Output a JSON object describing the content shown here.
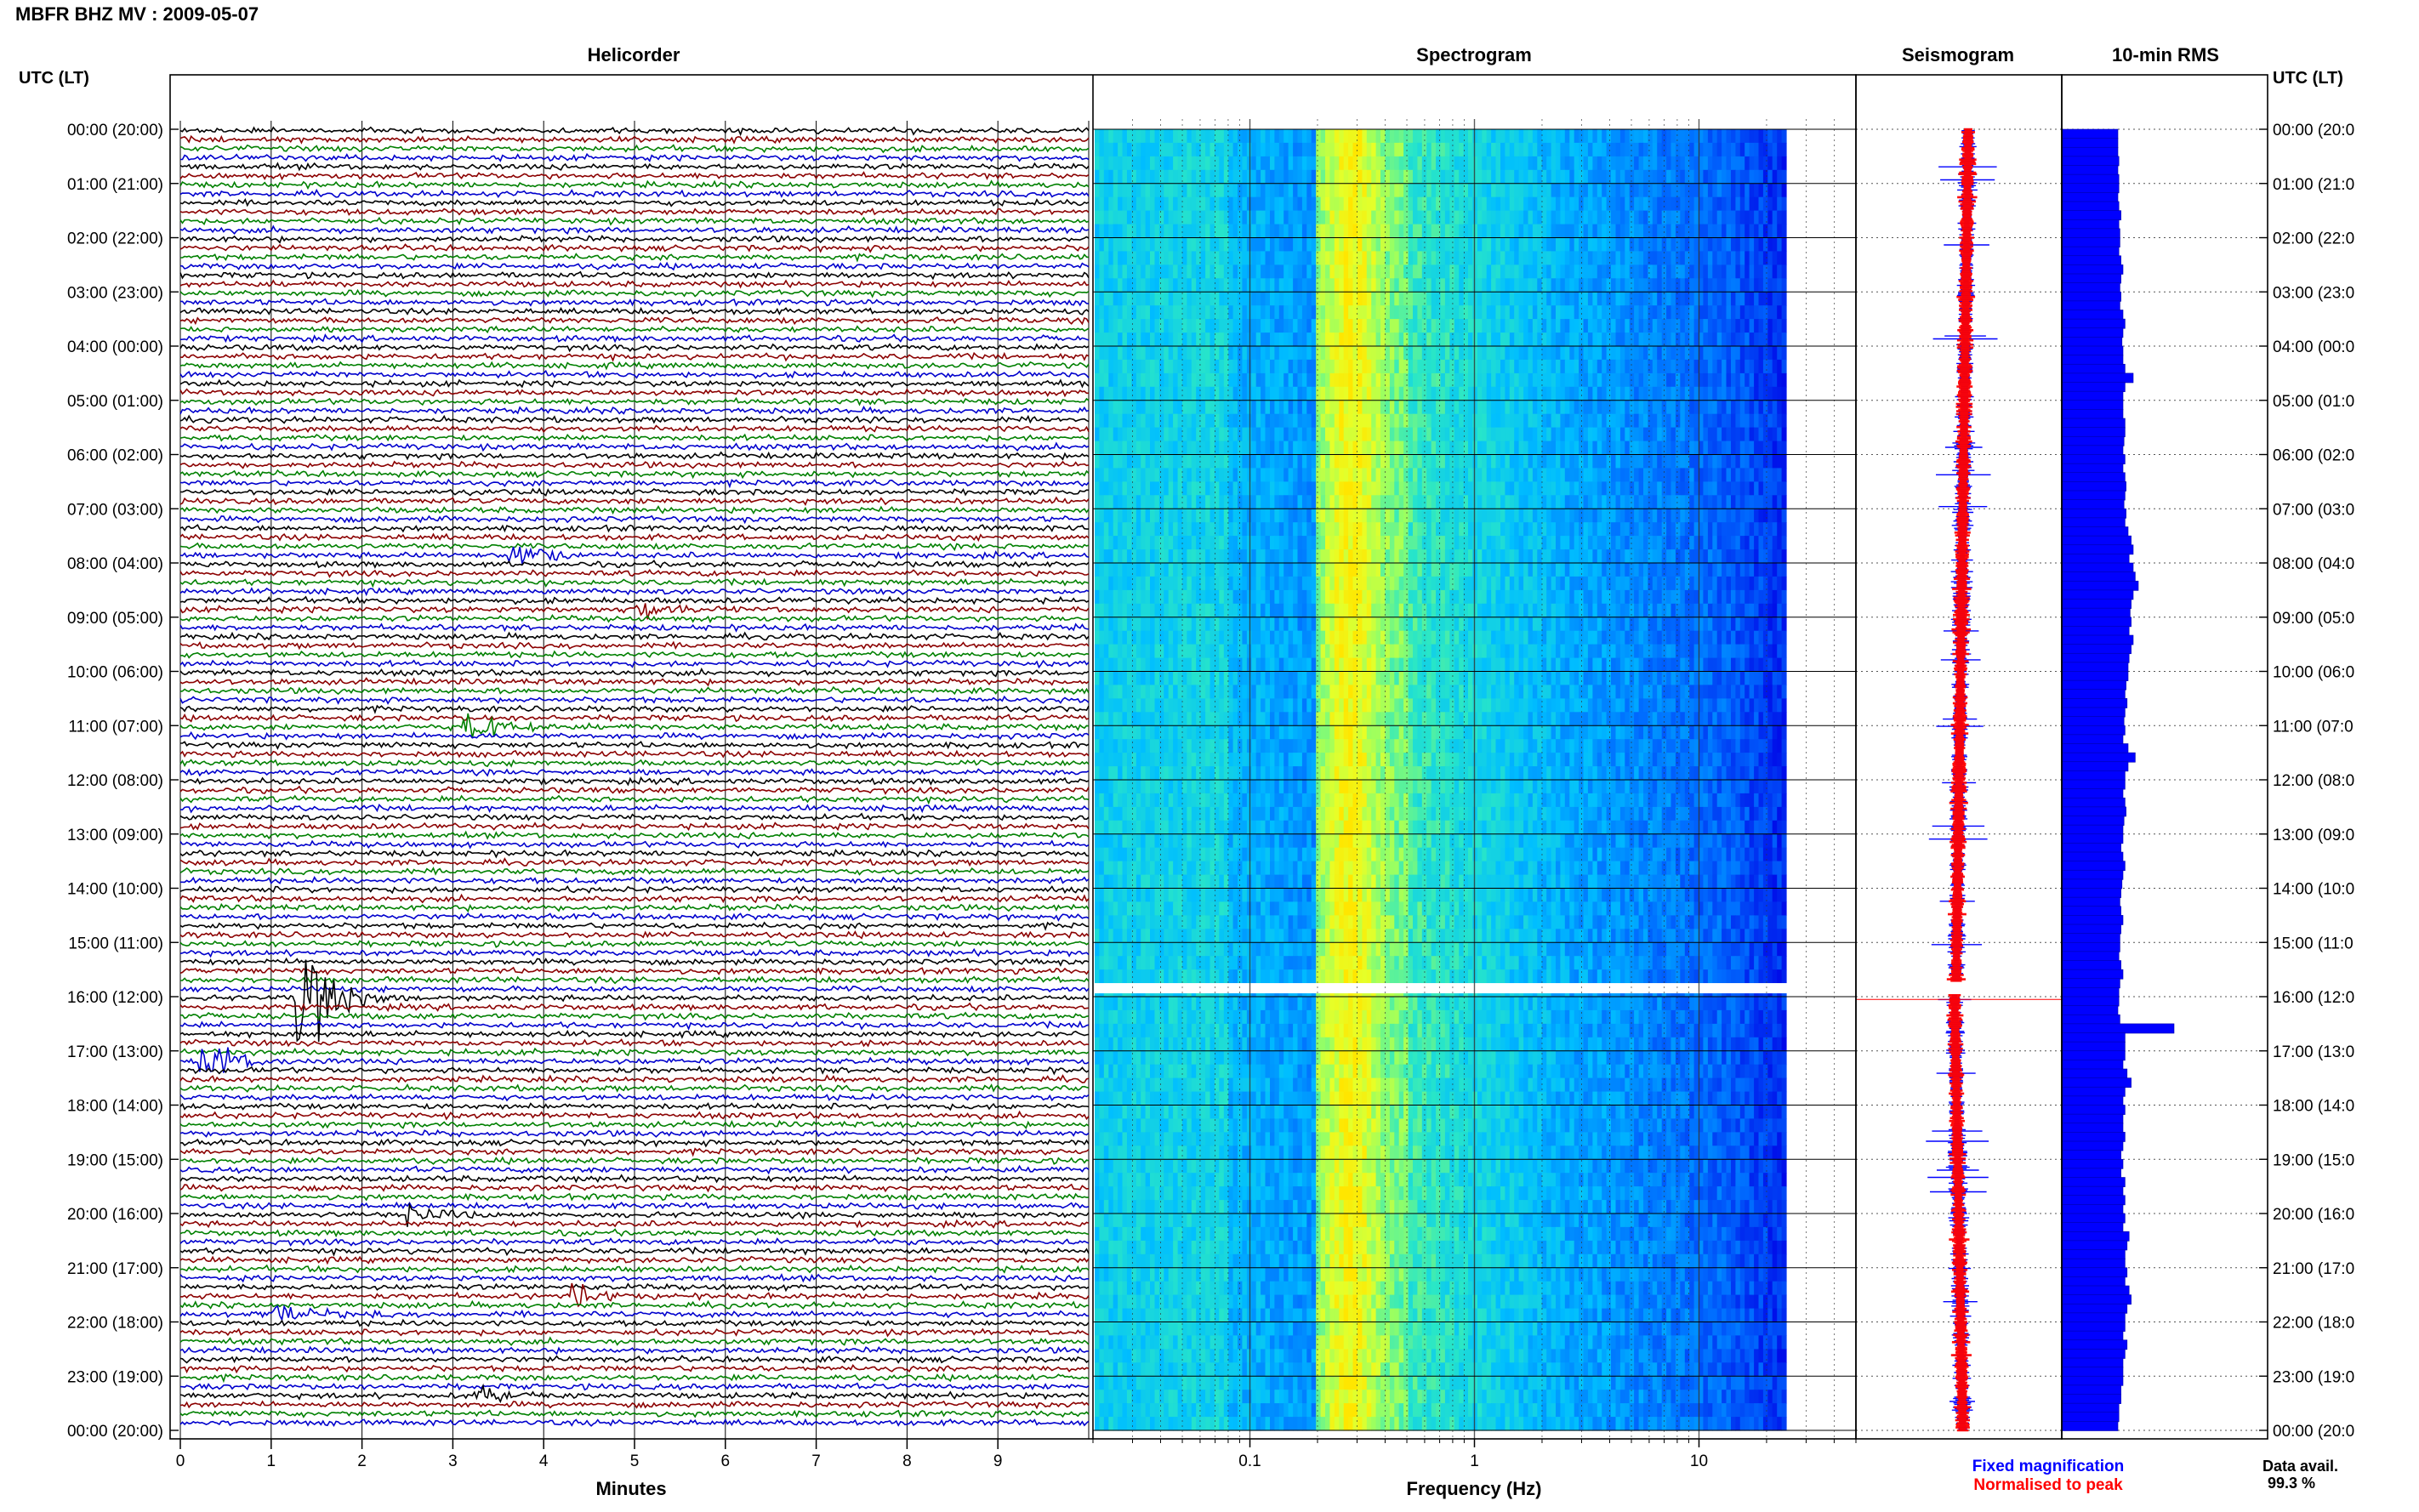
{
  "header": {
    "title": "MBFR BHZ MV : 2009-05-07",
    "time_axis_label": "UTC (LT)"
  },
  "panels": {
    "helicorder": "Helicorder",
    "spectrogram": "Spectrogram",
    "seismogram": "Seismogram",
    "rms": "10-min RMS"
  },
  "row_labels": [
    "00:00 (20:00)",
    "01:00 (21:00)",
    "02:00 (22:00)",
    "03:00 (23:00)",
    "04:00 (00:00)",
    "05:00 (01:00)",
    "06:00 (02:00)",
    "07:00 (03:00)",
    "08:00 (04:00)",
    "09:00 (05:00)",
    "10:00 (06:00)",
    "11:00 (07:00)",
    "12:00 (08:00)",
    "13:00 (09:00)",
    "14:00 (10:00)",
    "15:00 (11:00)",
    "16:00 (12:00)",
    "17:00 (13:00)",
    "18:00 (14:00)",
    "19:00 (15:00)",
    "20:00 (16:00)",
    "21:00 (17:00)",
    "22:00 (18:00)",
    "23:00 (19:00)",
    "00:00 (20:00)"
  ],
  "right_row_labels": [
    "00:00 (20:0",
    "01:00 (21:0",
    "02:00 (22:0",
    "03:00 (23:0",
    "04:00 (00:0",
    "05:00 (01:0",
    "06:00 (02:0",
    "07:00 (03:0",
    "08:00 (04:0",
    "09:00 (05:0",
    "10:00 (06:0",
    "11:00 (07:0",
    "12:00 (08:0",
    "13:00 (09:0",
    "14:00 (10:0",
    "15:00 (11:0",
    "16:00 (12:0",
    "17:00 (13:0",
    "18:00 (14:0",
    "19:00 (15:0",
    "20:00 (16:0",
    "21:00 (17:0",
    "22:00 (18:0",
    "23:00 (19:0",
    "00:00 (20:0"
  ],
  "colors": {
    "trace_cycle": [
      "#000000",
      "#8b0000",
      "#008000",
      "#0000cd"
    ],
    "fixed_magnification": "#0000ff",
    "normalised_to_peak": "#ff0000",
    "rms_bar": "#0000ff",
    "gap": "#ffffff"
  },
  "chart_data": {
    "type": "heatmap",
    "helicorder": {
      "xlabel": "Minutes",
      "xticks": [
        "0",
        "1",
        "2",
        "3",
        "4",
        "5",
        "6",
        "7",
        "8",
        "9"
      ],
      "xlim": [
        0,
        10
      ],
      "traces_per_hour": 6,
      "events": [
        {
          "hour": 16.0,
          "minute": 1.25,
          "amplitude": 4.5,
          "color": "#8b0000"
        },
        {
          "hour": 17.2,
          "minute": 0.2,
          "amplitude": 1.6,
          "color": "#000000"
        },
        {
          "hour": 11.0,
          "minute": 3.1,
          "amplitude": 1.4,
          "color": "#008000"
        },
        {
          "hour": 8.83,
          "minute": 5.0,
          "amplitude": 1.2,
          "color": "#000000"
        },
        {
          "hour": 7.83,
          "minute": 3.6,
          "amplitude": 1.2,
          "color": "#008000"
        },
        {
          "hour": 21.5,
          "minute": 4.3,
          "amplitude": 1.0,
          "color": "#8b0000"
        },
        {
          "hour": 20.0,
          "minute": 2.5,
          "amplitude": 1.0,
          "color": "#000000"
        },
        {
          "hour": 21.83,
          "minute": 1.0,
          "amplitude": 1.0,
          "color": "#008000"
        },
        {
          "hour": 23.33,
          "minute": 3.2,
          "amplitude": 0.9,
          "color": "#000000"
        }
      ]
    },
    "spectrogram": {
      "xlabel": "Frequency (Hz)",
      "scale": "log",
      "xlim": [
        0.02,
        50
      ],
      "xticks": [
        "0.1",
        "1",
        "10"
      ],
      "gap_hour": 15.75
    },
    "seismogram": {
      "legend": [
        "Fixed magnification",
        "Normalised to peak"
      ]
    },
    "rms": {
      "unit_hint": "relative",
      "values": [
        0.55,
        0.55,
        0.55,
        0.56,
        0.55,
        0.56,
        0.56,
        0.55,
        0.56,
        0.58,
        0.56,
        0.57,
        0.57,
        0.56,
        0.58,
        0.6,
        0.58,
        0.57,
        0.58,
        0.57,
        0.6,
        0.62,
        0.6,
        0.59,
        0.6,
        0.6,
        0.62,
        0.7,
        0.62,
        0.6,
        0.6,
        0.6,
        0.62,
        0.62,
        0.61,
        0.6,
        0.62,
        0.6,
        0.62,
        0.63,
        0.62,
        0.61,
        0.63,
        0.62,
        0.65,
        0.68,
        0.7,
        0.66,
        0.7,
        0.72,
        0.75,
        0.7,
        0.68,
        0.67,
        0.68,
        0.66,
        0.7,
        0.68,
        0.66,
        0.65,
        0.65,
        0.63,
        0.62,
        0.64,
        0.62,
        0.61,
        0.62,
        0.6,
        0.65,
        0.72,
        0.65,
        0.62,
        0.62,
        0.6,
        0.62,
        0.63,
        0.61,
        0.6,
        0.6,
        0.58,
        0.6,
        0.62,
        0.6,
        0.59,
        0.58,
        0.57,
        0.58,
        0.6,
        0.58,
        0.57,
        0.57,
        0.56,
        0.58,
        0.6,
        0.57,
        0.56,
        0.56,
        0.55,
        0.57,
        1.1,
        0.62,
        0.62,
        0.62,
        0.6,
        0.64,
        0.68,
        0.62,
        0.6,
        0.62,
        0.6,
        0.6,
        0.62,
        0.6,
        0.58,
        0.6,
        0.58,
        0.62,
        0.6,
        0.62,
        0.6,
        0.62,
        0.6,
        0.66,
        0.64,
        0.62,
        0.62,
        0.64,
        0.62,
        0.66,
        0.68,
        0.64,
        0.62,
        0.62,
        0.6,
        0.64,
        0.62,
        0.6,
        0.6,
        0.6,
        0.58,
        0.58,
        0.56,
        0.56,
        0.55
      ]
    }
  },
  "footer": {
    "data_avail_label": "Data avail.",
    "data_avail_value": "99.3 %"
  }
}
